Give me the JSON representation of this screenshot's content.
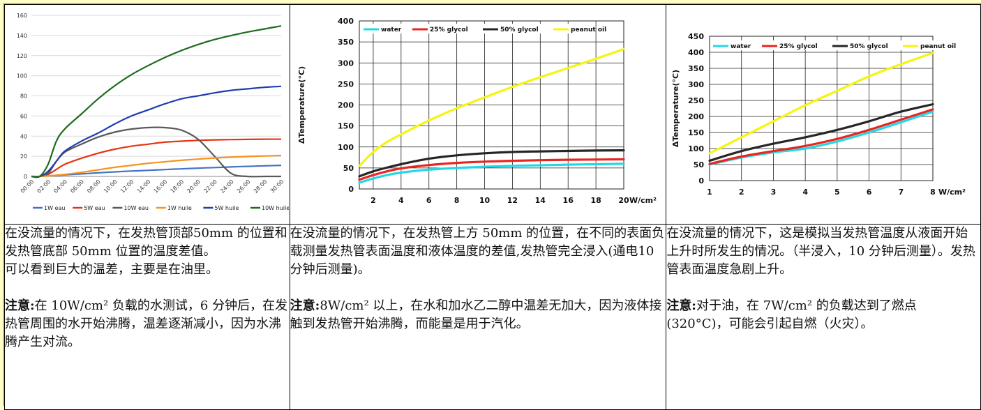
{
  "chart_data": [
    {
      "type": "line",
      "title": "",
      "xlabel": "",
      "ylabel": "",
      "ylim": [
        0,
        160
      ],
      "yticks": [
        0,
        20,
        40,
        60,
        80,
        100,
        120,
        140,
        160
      ],
      "x_tick_labels": [
        "00:00",
        "02:00",
        "04:00",
        "06:00",
        "08:00",
        "10:00",
        "12:00",
        "14:00",
        "16:00",
        "18:00",
        "20:00",
        "22:00",
        "24:00",
        "26:00",
        "28:00",
        "30:00"
      ],
      "x": [
        0,
        1,
        2,
        3,
        4,
        6,
        8,
        10,
        12,
        14,
        16,
        18,
        20,
        22,
        24,
        26,
        28,
        30
      ],
      "grid": "horizontal",
      "legend_position": "bottom",
      "series": [
        {
          "name": "1W eau",
          "color": "#4472c4",
          "values": [
            0,
            0,
            0.5,
            1,
            1.5,
            2.5,
            3.5,
            4.5,
            5.3,
            6,
            6.8,
            7.5,
            8.2,
            8.8,
            9.4,
            10,
            10.5,
            11
          ]
        },
        {
          "name": "5W eau",
          "color": "#e63312",
          "values": [
            0,
            0,
            2,
            7,
            12,
            18,
            23,
            27,
            30,
            32,
            34,
            35,
            35.8,
            36.3,
            36.6,
            36.8,
            37,
            37
          ]
        },
        {
          "name": "10W eau",
          "color": "#595959",
          "values": [
            0,
            0,
            3,
            15,
            24,
            32,
            39,
            44,
            47,
            48.5,
            48.5,
            46,
            37,
            20,
            3,
            0,
            0,
            0
          ]
        },
        {
          "name": "1W huile",
          "color": "#f7931e",
          "values": [
            0,
            0,
            0.5,
            1.2,
            2,
            4,
            6.5,
            9,
            11,
            13,
            14.5,
            16,
            17.2,
            18.3,
            19.1,
            19.8,
            20.3,
            20.8
          ]
        },
        {
          "name": "5W huile",
          "color": "#1f3dae",
          "values": [
            0,
            0,
            5,
            15,
            25,
            35,
            43,
            52,
            60,
            66,
            72,
            77,
            80,
            83,
            85.5,
            87,
            88.5,
            89.5
          ]
        },
        {
          "name": "10W huile",
          "color": "#1e6b1e",
          "values": [
            0,
            0,
            12,
            35,
            47,
            62,
            77,
            90,
            101,
            110,
            118,
            125,
            131,
            136,
            140,
            143.5,
            146.5,
            149.5
          ]
        }
      ]
    },
    {
      "type": "line",
      "title": "",
      "xlabel": "W/cm²",
      "ylabel": "ΔTemperature(°C)",
      "xlim": [
        1,
        20
      ],
      "ylim": [
        0,
        400
      ],
      "xticks": [
        2,
        4,
        6,
        8,
        10,
        12,
        14,
        16,
        18,
        20
      ],
      "yticks": [
        0,
        50,
        100,
        150,
        200,
        250,
        300,
        350,
        400
      ],
      "x": [
        1,
        2,
        3,
        4,
        6,
        8,
        10,
        12,
        14,
        16,
        18,
        20
      ],
      "grid": "both",
      "legend_position": "top",
      "series": [
        {
          "name": "water",
          "color": "#22d8e6",
          "values": [
            15,
            25,
            33,
            39,
            46,
            50,
            53,
            55,
            56.5,
            58,
            59,
            60
          ]
        },
        {
          "name": "25% glycol",
          "color": "#e8251f",
          "values": [
            22,
            33,
            42,
            49,
            57,
            62,
            65,
            67,
            68.5,
            69.5,
            70,
            70.5
          ]
        },
        {
          "name": "50% glycol",
          "color": "#262626",
          "values": [
            30,
            42,
            51,
            59,
            72,
            80,
            85,
            88,
            89.5,
            90.5,
            91.5,
            92
          ]
        },
        {
          "name": "peanut oil",
          "color": "#f5f50f",
          "values": [
            55,
            88,
            112,
            130,
            163,
            192,
            218,
            243,
            266,
            288,
            310,
            333
          ]
        }
      ]
    },
    {
      "type": "line",
      "title": "",
      "xlabel": "W/cm²",
      "ylabel": "ΔTemperature(°C)",
      "xlim": [
        1,
        8
      ],
      "ylim": [
        0,
        450
      ],
      "xticks": [
        1,
        2,
        3,
        4,
        5,
        6,
        7,
        8
      ],
      "yticks": [
        0,
        50,
        100,
        150,
        200,
        250,
        300,
        350,
        400,
        450
      ],
      "x": [
        1,
        2,
        3,
        4,
        5,
        6,
        7,
        8
      ],
      "grid": "both",
      "legend_position": "top",
      "series": [
        {
          "name": "water",
          "color": "#22d8e6",
          "values": [
            50,
            72,
            88,
            100,
            122,
            150,
            182,
            215
          ]
        },
        {
          "name": "25% glycol",
          "color": "#e8251f",
          "values": [
            52,
            75,
            92,
            108,
            130,
            158,
            190,
            222
          ]
        },
        {
          "name": "50% glycol",
          "color": "#262626",
          "values": [
            62,
            92,
            115,
            135,
            158,
            185,
            215,
            238
          ]
        },
        {
          "name": "peanut oil",
          "color": "#f5f50f",
          "values": [
            85,
            135,
            185,
            235,
            280,
            325,
            363,
            398
          ]
        }
      ]
    }
  ],
  "text": {
    "col1": {
      "p1": "在没流量的情况下，在发热管顶部50mm 的位置和发热管底部 50mm 位置的温度差值。",
      "p2": "可以看到巨大的温差，主要是在油里。",
      "note_label": "注意:",
      "note": "在 10W/cm² 负载的水测试，6 分钟后，在发热管周围的水开始沸腾，温差逐渐减小，因为水沸腾产生对流。"
    },
    "col2": {
      "p1": "在没流量的情况下，在发热管上方 50mm 的位置，在不同的表面负载测量发热管表面温度和液体温度的差值,发热管完全浸入(通电10分钟后测量)。",
      "note_label": "注意:",
      "note": "8W/cm² 以上，在水和加水乙二醇中温差无加大，因为液体接触到发热管开始沸腾，而能量是用于汽化。"
    },
    "col3": {
      "p1": "在没流量的情况下，这是模拟当发热管温度从液面开始上升时所发生的情况。（半浸入，10 分钟后测量）。发热管表面温度急剧上升。",
      "note_label": "注意:",
      "note": "对于油，在 7W/cm² 的负载达到了燃点 (320°C)，可能会引起自燃（火灾）。"
    }
  }
}
